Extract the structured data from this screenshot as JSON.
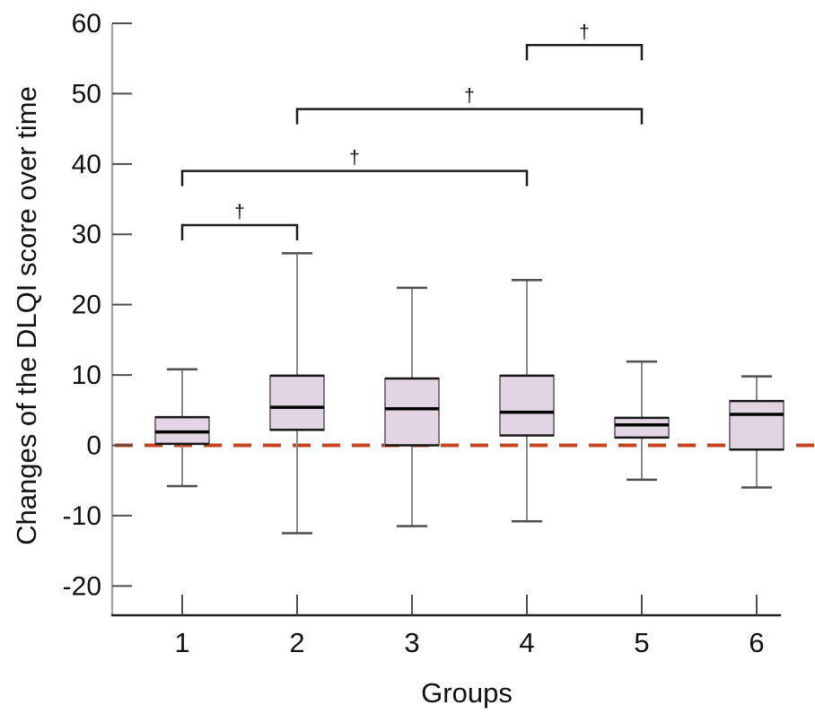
{
  "figure": {
    "background": "#ffffff"
  },
  "chart_data": {
    "type": "box",
    "title": "",
    "xlabel": "Groups",
    "ylabel": "Changes of the DLQI score over time",
    "categories": [
      "1",
      "2",
      "3",
      "4",
      "5",
      "6"
    ],
    "yticks": [
      60,
      50,
      40,
      30,
      20,
      10,
      0,
      -10,
      -20
    ],
    "ylim": [
      -24.2,
      60
    ],
    "grid": false,
    "legend": "none",
    "series": [
      {
        "group": "1",
        "whisker_low": -5.8,
        "q1": 0.2,
        "median": 1.9,
        "q3": 4.0,
        "whisker_high": 10.8
      },
      {
        "group": "2",
        "whisker_low": -12.5,
        "q1": 2.2,
        "median": 5.4,
        "q3": 9.9,
        "whisker_high": 27.3
      },
      {
        "group": "3",
        "whisker_low": -11.5,
        "q1": 0.0,
        "median": 5.2,
        "q3": 9.5,
        "whisker_high": 22.4
      },
      {
        "group": "4",
        "whisker_low": -10.8,
        "q1": 1.4,
        "median": 4.7,
        "q3": 9.9,
        "whisker_high": 23.5
      },
      {
        "group": "5",
        "whisker_low": -4.9,
        "q1": 1.1,
        "median": 2.9,
        "q3": 3.9,
        "whisker_high": 11.9
      },
      {
        "group": "6",
        "whisker_low": -6.0,
        "q1": -0.6,
        "median": 4.4,
        "q3": 6.3,
        "whisker_high": 9.8
      }
    ],
    "reference_line": {
      "y": 0,
      "style": "dashed",
      "color": "#c5431d"
    },
    "significance_brackets": [
      {
        "from": "1",
        "to": "2",
        "y": 31.3,
        "label": "†"
      },
      {
        "from": "1",
        "to": "4",
        "y": 39.0,
        "label": "†"
      },
      {
        "from": "2",
        "to": "5",
        "y": 47.8,
        "label": "†"
      },
      {
        "from": "4",
        "to": "5",
        "y": 56.9,
        "label": "†"
      }
    ],
    "colors": {
      "box_fill": "#e2d4e2",
      "box_side": "#7a7a7a",
      "box_edge": "#161616",
      "median": "#000000",
      "whisker": "#8a8a8a",
      "whisker_cap": "#4f4f4f",
      "y_axis": "#a8a8a8",
      "x_axis": "#1f1f1f",
      "tick": "#4d4d4d",
      "bracket": "#1c1c1c",
      "text": "#111111"
    }
  }
}
